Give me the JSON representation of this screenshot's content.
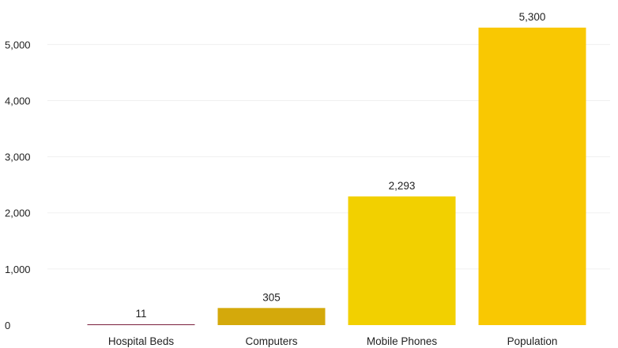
{
  "chart_data": {
    "type": "bar",
    "title": "",
    "xlabel": "",
    "ylabel": "",
    "categories": [
      "Hospital Beds",
      "Computers",
      "Mobile Phones",
      "Population"
    ],
    "values": [
      11,
      305,
      2293,
      5300
    ],
    "value_labels": [
      "11",
      "305",
      "2,293",
      "5,300"
    ],
    "bar_colors": [
      "#7a1f3d",
      "#d4a90b",
      "#f2d000",
      "#f9c802"
    ],
    "ylim": [
      0,
      5300
    ],
    "yticks": [
      0,
      1000,
      2000,
      3000,
      4000,
      5000
    ],
    "ytick_labels": [
      "0",
      "1,000",
      "2,000",
      "3,000",
      "4,000",
      "5,000"
    ],
    "grid": true,
    "legend": "none"
  }
}
